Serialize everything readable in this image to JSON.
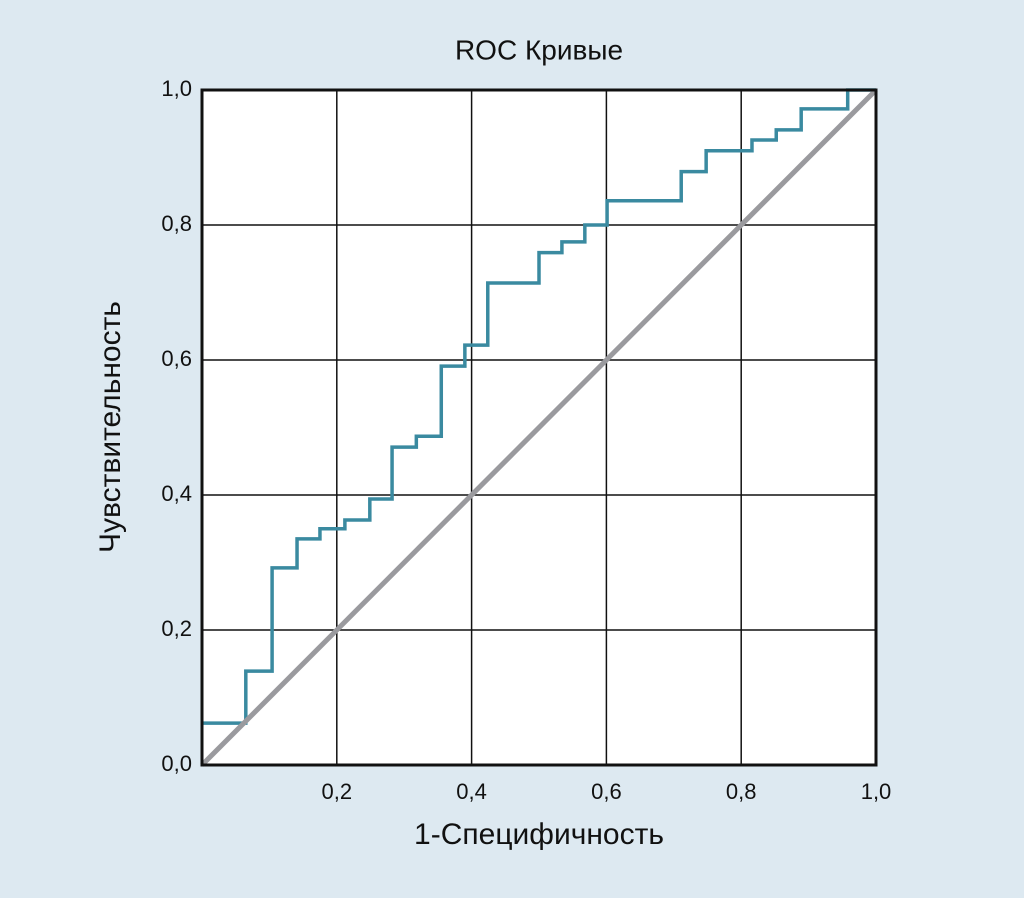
{
  "chart_data": {
    "type": "line",
    "title": "ROC Кривые",
    "x_label": "1-Специфичность",
    "y_label": "Чувствительность",
    "xlim": [
      0,
      1
    ],
    "ylim": [
      0,
      1
    ],
    "xticks": [
      {
        "value": 0.2,
        "label": "0,2"
      },
      {
        "value": 0.4,
        "label": "0,4"
      },
      {
        "value": 0.6,
        "label": "0,6"
      },
      {
        "value": 0.8,
        "label": "0,8"
      },
      {
        "value": 1,
        "label": "1,0"
      }
    ],
    "yticks": [
      {
        "value": 0,
        "label": "0,0"
      },
      {
        "value": 0.2,
        "label": "0,2"
      },
      {
        "value": 0.4,
        "label": "0,4"
      },
      {
        "value": 0.6,
        "label": "0,6"
      },
      {
        "value": 0.8,
        "label": "0,8"
      },
      {
        "value": 1,
        "label": "1,0"
      }
    ],
    "grid": true,
    "series": [
      {
        "color": "#3a8aa0",
        "x": [
          0,
          0.065,
          0.065,
          0.104,
          0.104,
          0.141,
          0.141,
          0.175,
          0.175,
          0.212,
          0.212,
          0.249,
          0.249,
          0.282,
          0.282,
          0.318,
          0.318,
          0.355,
          0.355,
          0.39,
          0.39,
          0.424,
          0.424,
          0.5,
          0.5,
          0.534,
          0.534,
          0.568,
          0.568,
          0.601,
          0.601,
          0.711,
          0.711,
          0.748,
          0.748,
          0.816,
          0.816,
          0.852,
          0.852,
          0.889,
          0.889,
          0.958,
          0.958,
          1.0
        ],
        "values": [
          0.062,
          0.062,
          0.139,
          0.139,
          0.292,
          0.292,
          0.335,
          0.335,
          0.35,
          0.35,
          0.363,
          0.363,
          0.394,
          0.394,
          0.471,
          0.471,
          0.487,
          0.487,
          0.591,
          0.591,
          0.622,
          0.622,
          0.714,
          0.714,
          0.759,
          0.759,
          0.775,
          0.775,
          0.8,
          0.8,
          0.836,
          0.836,
          0.879,
          0.879,
          0.91,
          0.91,
          0.926,
          0.926,
          0.941,
          0.941,
          0.972,
          0.972,
          1.0,
          1.0
        ]
      },
      {
        "color": "#9a9a9e",
        "x": [
          0,
          1
        ],
        "values": [
          0,
          1
        ]
      }
    ]
  }
}
